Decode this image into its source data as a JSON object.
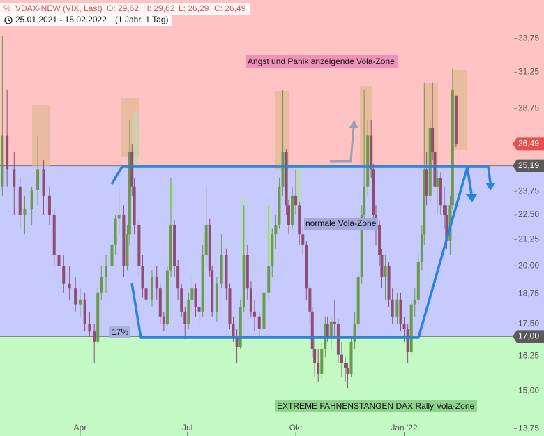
{
  "chart_data": {
    "type": "candlestick",
    "title": "VDAX-NEW (VIX, Last)",
    "ohlc_labels": [
      "O: 29,62",
      "H: 29,62",
      "L: 26,29",
      "C: 26,49"
    ],
    "subtitle": "25.01.2021 - 15.02.2022",
    "period": "(1 Jahr, 1 Tag)",
    "annotations": [
      "Angst und Panik anzeigende Vola-Zone",
      "normale Vola-Zone",
      "EXTREME FAHNENSTANGEN DAX Rally Vola-Zone",
      "17%"
    ],
    "log_y": true,
    "ylim": [
      13.52,
      36.9
    ],
    "yticks": [
      {
        "value": 33.75,
        "label": "33,75"
      },
      {
        "value": 31.25,
        "label": "31,25"
      },
      {
        "value": 28.75,
        "label": "28,75"
      },
      {
        "value": 23.75,
        "label": "23,75"
      },
      {
        "value": 22.5,
        "label": "22,50"
      },
      {
        "value": 21.25,
        "label": "21,25"
      },
      {
        "value": 20,
        "label": "20,00"
      },
      {
        "value": 18.75,
        "label": "18,75"
      },
      {
        "value": 17.5,
        "label": "17,50"
      },
      {
        "value": 16.25,
        "label": "16,25"
      },
      {
        "value": 15,
        "label": "15,00"
      },
      {
        "value": 13.75,
        "label": "13,75"
      }
    ],
    "xlim": [
      -2,
      433
    ],
    "xticks": [
      {
        "value": 66,
        "label": "Apr"
      },
      {
        "value": 157,
        "label": "Jul"
      },
      {
        "value": 249,
        "label": "Okt"
      },
      {
        "value": 341,
        "label": "Jan '22"
      }
    ],
    "price_lines": [
      {
        "value": 26.49,
        "label": "26,49",
        "color": "#e8504f"
      },
      {
        "value": 25.19,
        "label": "25,19",
        "color": "#5a5a5a"
      },
      {
        "value": 17,
        "label": "17,00",
        "color": "#5a5a5a"
      }
    ],
    "zone_colors": [
      "#ffc3c3",
      "#c6cafc",
      "#c3f9c3"
    ],
    "up_color": "#6a9a4c",
    "down_color": "#8e4d72",
    "candles": [
      {
        "x": 0,
        "open": 24,
        "high": 34,
        "low": 23.5,
        "close": 27
      },
      {
        "x": 4,
        "open": 27,
        "high": 30,
        "low": 24,
        "close": 25
      },
      {
        "x": 10,
        "open": 25,
        "high": 26,
        "low": 22.5,
        "close": 24
      },
      {
        "x": 15,
        "open": 24,
        "high": 24.5,
        "low": 21.8,
        "close": 22.5
      },
      {
        "x": 19,
        "open": 22.5,
        "high": 23.5,
        "low": 21.5,
        "close": 22.8
      },
      {
        "x": 25,
        "open": 22.8,
        "high": 24,
        "low": 22,
        "close": 23.8
      },
      {
        "x": 30,
        "open": 23.8,
        "high": 27,
        "low": 23,
        "close": 25
      },
      {
        "x": 35,
        "open": 25,
        "high": 25.5,
        "low": 22.5,
        "close": 23.5
      },
      {
        "x": 40,
        "open": 23.5,
        "high": 24,
        "low": 22,
        "close": 22.5
      },
      {
        "x": 44,
        "open": 22.5,
        "high": 22.8,
        "low": 20,
        "close": 20.5
      },
      {
        "x": 48,
        "open": 20.5,
        "high": 21,
        "low": 19.5,
        "close": 20
      },
      {
        "x": 52,
        "open": 20,
        "high": 20.5,
        "low": 18.8,
        "close": 19.2
      },
      {
        "x": 57,
        "open": 19.2,
        "high": 20,
        "low": 18.5,
        "close": 19
      },
      {
        "x": 62,
        "open": 19,
        "high": 19.5,
        "low": 18,
        "close": 18.3
      },
      {
        "x": 66,
        "open": 18.3,
        "high": 19,
        "low": 17.8,
        "close": 18.5
      },
      {
        "x": 70,
        "open": 18.5,
        "high": 18.8,
        "low": 17.2,
        "close": 17.5
      },
      {
        "x": 74,
        "open": 17.5,
        "high": 18,
        "low": 17,
        "close": 17.2
      },
      {
        "x": 78,
        "open": 17.2,
        "high": 17.5,
        "low": 16,
        "close": 16.8
      },
      {
        "x": 81,
        "open": 16.8,
        "high": 19,
        "low": 16.7,
        "close": 18.8
      },
      {
        "x": 84,
        "open": 18.8,
        "high": 20,
        "low": 18.5,
        "close": 19.5
      },
      {
        "x": 88,
        "open": 19.5,
        "high": 20.5,
        "low": 18.8,
        "close": 20
      },
      {
        "x": 93,
        "open": 20,
        "high": 21.5,
        "low": 19.5,
        "close": 21
      },
      {
        "x": 96,
        "open": 21,
        "high": 22.5,
        "low": 20.5,
        "close": 22.3
      },
      {
        "x": 99,
        "open": 22.3,
        "high": 24,
        "low": 21.5,
        "close": 22.5
      },
      {
        "x": 103,
        "open": 22.5,
        "high": 23,
        "low": 19.5,
        "close": 20
      },
      {
        "x": 106,
        "open": 20,
        "high": 22,
        "low": 19.8,
        "close": 21.5
      },
      {
        "x": 108,
        "open": 21.5,
        "high": 28,
        "low": 21,
        "close": 26
      },
      {
        "x": 110,
        "open": 26,
        "high": 26.5,
        "low": 23.5,
        "close": 24
      },
      {
        "x": 112,
        "open": 24,
        "high": 24.5,
        "low": 21.5,
        "close": 22
      },
      {
        "x": 116,
        "open": 22,
        "high": 22.3,
        "low": 19.5,
        "close": 20
      },
      {
        "x": 119,
        "open": 20,
        "high": 20.5,
        "low": 18.6,
        "close": 19
      },
      {
        "x": 122,
        "open": 19,
        "high": 19.5,
        "low": 18.3,
        "close": 18.5
      },
      {
        "x": 127,
        "open": 18.5,
        "high": 19.8,
        "low": 18.2,
        "close": 19.5
      },
      {
        "x": 131,
        "open": 19.5,
        "high": 20,
        "low": 18.5,
        "close": 19
      },
      {
        "x": 134,
        "open": 19,
        "high": 19.2,
        "low": 17.5,
        "close": 17.8
      },
      {
        "x": 137,
        "open": 17.8,
        "high": 18,
        "low": 17.2,
        "close": 17.5
      },
      {
        "x": 140,
        "open": 17.5,
        "high": 20,
        "low": 17.4,
        "close": 19.8
      },
      {
        "x": 143,
        "open": 19.8,
        "high": 24.5,
        "low": 19.5,
        "close": 22
      },
      {
        "x": 146,
        "open": 22,
        "high": 22.2,
        "low": 19.5,
        "close": 20
      },
      {
        "x": 149,
        "open": 20,
        "high": 20.3,
        "low": 18.5,
        "close": 19
      },
      {
        "x": 152,
        "open": 19,
        "high": 19.2,
        "low": 17.8,
        "close": 18
      },
      {
        "x": 155,
        "open": 18,
        "high": 18.2,
        "low": 16.9,
        "close": 17.5
      },
      {
        "x": 158,
        "open": 17.5,
        "high": 18.8,
        "low": 17.3,
        "close": 18.5
      },
      {
        "x": 161,
        "open": 18.5,
        "high": 19.5,
        "low": 18,
        "close": 19
      },
      {
        "x": 164,
        "open": 19,
        "high": 19.2,
        "low": 17.8,
        "close": 18.2
      },
      {
        "x": 167,
        "open": 18.2,
        "high": 18.5,
        "low": 17.5,
        "close": 18
      },
      {
        "x": 170,
        "open": 18,
        "high": 21,
        "low": 17.8,
        "close": 20.5
      },
      {
        "x": 173,
        "open": 20.5,
        "high": 24,
        "low": 20,
        "close": 22
      },
      {
        "x": 176,
        "open": 22,
        "high": 22.3,
        "low": 19.5,
        "close": 19.8
      },
      {
        "x": 178,
        "open": 19.8,
        "high": 20,
        "low": 17.8,
        "close": 18
      },
      {
        "x": 182,
        "open": 18,
        "high": 19.5,
        "low": 17.6,
        "close": 19.2
      },
      {
        "x": 186,
        "open": 19.2,
        "high": 21.5,
        "low": 19,
        "close": 20.5
      },
      {
        "x": 190,
        "open": 20.5,
        "high": 20.8,
        "low": 18.5,
        "close": 19
      },
      {
        "x": 193,
        "open": 19,
        "high": 19.2,
        "low": 17.3,
        "close": 17.5
      },
      {
        "x": 196,
        "open": 17.5,
        "high": 17.8,
        "low": 16.8,
        "close": 17
      },
      {
        "x": 199,
        "open": 17,
        "high": 17.3,
        "low": 16,
        "close": 16.6
      },
      {
        "x": 202,
        "open": 16.6,
        "high": 18.5,
        "low": 16.5,
        "close": 18.2
      },
      {
        "x": 205,
        "open": 18.2,
        "high": 23,
        "low": 18,
        "close": 20.5
      },
      {
        "x": 208,
        "open": 20.5,
        "high": 21,
        "low": 18.5,
        "close": 19
      },
      {
        "x": 211,
        "open": 19,
        "high": 19.3,
        "low": 17.8,
        "close": 18
      },
      {
        "x": 214,
        "open": 18,
        "high": 18.5,
        "low": 17.2,
        "close": 17.8
      },
      {
        "x": 218,
        "open": 17.8,
        "high": 18,
        "low": 17,
        "close": 17.3
      },
      {
        "x": 222,
        "open": 17.3,
        "high": 19,
        "low": 17.2,
        "close": 18.8
      },
      {
        "x": 226,
        "open": 18.8,
        "high": 23,
        "low": 18.5,
        "close": 20
      },
      {
        "x": 229,
        "open": 20,
        "high": 21.8,
        "low": 19.5,
        "close": 21.5
      },
      {
        "x": 232,
        "open": 21.5,
        "high": 22.5,
        "low": 20.8,
        "close": 22
      },
      {
        "x": 235,
        "open": 22,
        "high": 24.5,
        "low": 21.8,
        "close": 24
      },
      {
        "x": 238,
        "open": 24,
        "high": 30,
        "low": 23.5,
        "close": 26
      },
      {
        "x": 241,
        "open": 26,
        "high": 26.2,
        "low": 22.5,
        "close": 23
      },
      {
        "x": 243,
        "open": 23,
        "high": 23.3,
        "low": 21.5,
        "close": 22
      },
      {
        "x": 246,
        "open": 22,
        "high": 24,
        "low": 21.8,
        "close": 23.5
      },
      {
        "x": 249,
        "open": 23.5,
        "high": 25,
        "low": 22.5,
        "close": 23
      },
      {
        "x": 252,
        "open": 23,
        "high": 23.2,
        "low": 21,
        "close": 21.5
      },
      {
        "x": 255,
        "open": 21.5,
        "high": 22,
        "low": 20.5,
        "close": 21
      },
      {
        "x": 258,
        "open": 21,
        "high": 21.2,
        "low": 18.5,
        "close": 19
      },
      {
        "x": 261,
        "open": 19,
        "high": 19.2,
        "low": 17.5,
        "close": 18
      },
      {
        "x": 263,
        "open": 18,
        "high": 18.2,
        "low": 16.2,
        "close": 16.5
      },
      {
        "x": 265,
        "open": 16.5,
        "high": 17,
        "low": 15.5,
        "close": 16
      },
      {
        "x": 268,
        "open": 16,
        "high": 16.5,
        "low": 15.3,
        "close": 15.6
      },
      {
        "x": 271,
        "open": 15.6,
        "high": 16.8,
        "low": 15.4,
        "close": 16.5
      },
      {
        "x": 274,
        "open": 16.5,
        "high": 17.8,
        "low": 16.2,
        "close": 17.5
      },
      {
        "x": 276,
        "open": 17.5,
        "high": 17.8,
        "low": 16.8,
        "close": 17
      },
      {
        "x": 279,
        "open": 17,
        "high": 17.8,
        "low": 16.5,
        "close": 17.6
      },
      {
        "x": 282,
        "open": 17.6,
        "high": 18.5,
        "low": 17,
        "close": 17.5
      },
      {
        "x": 285,
        "open": 17.5,
        "high": 17.7,
        "low": 16,
        "close": 16.3
      },
      {
        "x": 288,
        "open": 16.3,
        "high": 16.8,
        "low": 15.5,
        "close": 16
      },
      {
        "x": 291,
        "open": 16,
        "high": 16.2,
        "low": 15.3,
        "close": 15.8
      },
      {
        "x": 293,
        "open": 15.8,
        "high": 16,
        "low": 15.1,
        "close": 15.6
      },
      {
        "x": 296,
        "open": 15.6,
        "high": 17,
        "low": 15.5,
        "close": 16.8
      },
      {
        "x": 299,
        "open": 16.8,
        "high": 18,
        "low": 16.5,
        "close": 17.5
      },
      {
        "x": 302,
        "open": 17.5,
        "high": 19.8,
        "low": 17.3,
        "close": 19.5
      },
      {
        "x": 305,
        "open": 19.5,
        "high": 23,
        "low": 19.2,
        "close": 22.5
      },
      {
        "x": 307,
        "open": 22.5,
        "high": 30,
        "low": 22,
        "close": 24
      },
      {
        "x": 310,
        "open": 24,
        "high": 28,
        "low": 23.5,
        "close": 27
      },
      {
        "x": 313,
        "open": 27,
        "high": 28,
        "low": 24.5,
        "close": 25
      },
      {
        "x": 315,
        "open": 25,
        "high": 25.3,
        "low": 22,
        "close": 22.5
      },
      {
        "x": 317,
        "open": 22.5,
        "high": 23,
        "low": 21,
        "close": 22
      },
      {
        "x": 320,
        "open": 22,
        "high": 22.2,
        "low": 20,
        "close": 20.5
      },
      {
        "x": 322,
        "open": 20.5,
        "high": 20.8,
        "low": 19,
        "close": 19.5
      },
      {
        "x": 325,
        "open": 19.5,
        "high": 20.5,
        "low": 18.5,
        "close": 20
      },
      {
        "x": 328,
        "open": 20,
        "high": 20.2,
        "low": 18.2,
        "close": 18.5
      },
      {
        "x": 331,
        "open": 18.5,
        "high": 19,
        "low": 17.5,
        "close": 17.8
      },
      {
        "x": 335,
        "open": 17.8,
        "high": 18.8,
        "low": 17.5,
        "close": 18.5
      },
      {
        "x": 338,
        "open": 18.5,
        "high": 18.8,
        "low": 17.2,
        "close": 17.5
      },
      {
        "x": 341,
        "open": 17.5,
        "high": 17.8,
        "low": 16.8,
        "close": 17.3
      },
      {
        "x": 344,
        "open": 17.3,
        "high": 17.5,
        "low": 16,
        "close": 16.4
      },
      {
        "x": 347,
        "open": 16.4,
        "high": 18.5,
        "low": 16.3,
        "close": 18.3
      },
      {
        "x": 350,
        "open": 18.3,
        "high": 19,
        "low": 17.8,
        "close": 18.5
      },
      {
        "x": 353,
        "open": 18.5,
        "high": 20.5,
        "low": 18.3,
        "close": 20.2
      },
      {
        "x": 356,
        "open": 20.2,
        "high": 22,
        "low": 19.8,
        "close": 21.5
      },
      {
        "x": 358,
        "open": 21.5,
        "high": 30.5,
        "low": 21,
        "close": 25
      },
      {
        "x": 360,
        "open": 25,
        "high": 26,
        "low": 23,
        "close": 23.5
      },
      {
        "x": 363,
        "open": 23.5,
        "high": 28,
        "low": 23.2,
        "close": 27.5
      },
      {
        "x": 365,
        "open": 27.5,
        "high": 30.5,
        "low": 25.5,
        "close": 26
      },
      {
        "x": 367,
        "open": 26,
        "high": 26.3,
        "low": 23.5,
        "close": 24
      },
      {
        "x": 369,
        "open": 24,
        "high": 25,
        "low": 22.5,
        "close": 24.5
      },
      {
        "x": 372,
        "open": 24.5,
        "high": 24.8,
        "low": 22.5,
        "close": 23
      },
      {
        "x": 375,
        "open": 23,
        "high": 24,
        "low": 21.8,
        "close": 22.5
      },
      {
        "x": 377,
        "open": 22.5,
        "high": 23,
        "low": 20.8,
        "close": 21.2
      },
      {
        "x": 380,
        "open": 21.2,
        "high": 23.5,
        "low": 20.5,
        "close": 23
      },
      {
        "x": 382,
        "open": 23,
        "high": 31.5,
        "low": 22.8,
        "close": 30
      },
      {
        "x": 385,
        "open": 29.62,
        "high": 29.62,
        "low": 26.29,
        "close": 26.49
      }
    ]
  }
}
